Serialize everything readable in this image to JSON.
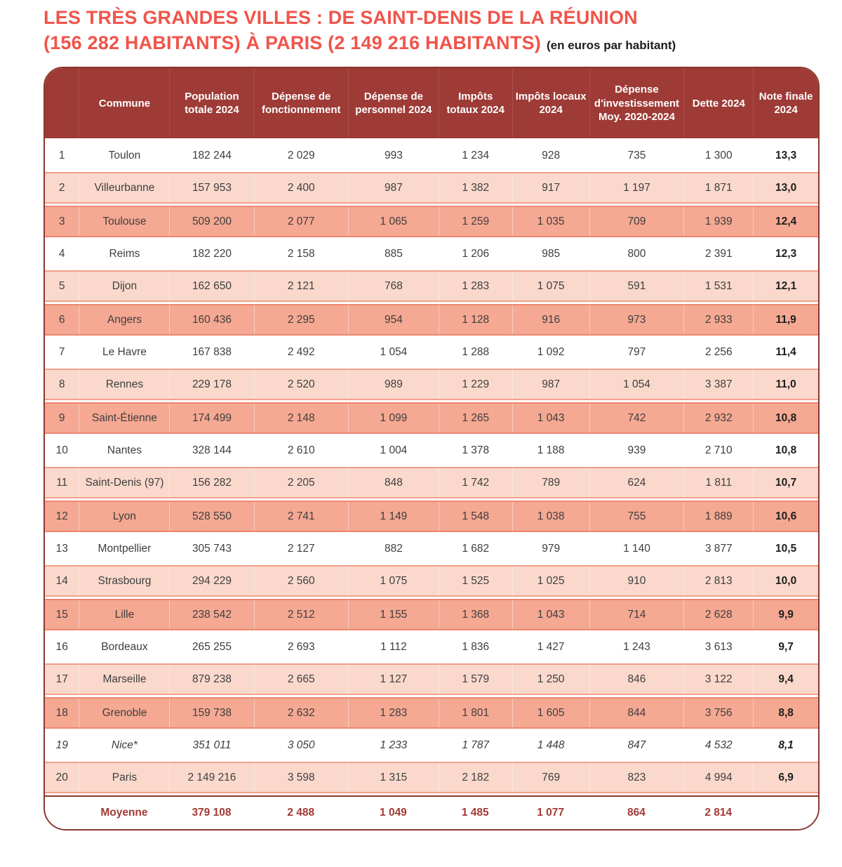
{
  "title": {
    "line1": "LES TRÈS GRANDES VILLES : DE SAINT-DENIS DE LA RÉUNION",
    "line2": "(156 282 HABITANTS) À PARIS (2 149 216 HABITANTS)",
    "suffix": "(en euros par habitant)"
  },
  "colors": {
    "title_red": "#f0544a",
    "header_background": "#9e3b36",
    "header_text": "#ffffff",
    "outer_border": "#8a3730",
    "row_light_background": "#fad9cc",
    "row_light_border": "#f2a18c",
    "row_dark_background": "#f5a892",
    "row_dark_border": "#ee8770",
    "body_text": "#3e3e3e",
    "average_text": "#a23a34"
  },
  "chart_data": {
    "type": "table",
    "title": "LES TRÈS GRANDES VILLES : DE SAINT-DENIS DE LA RÉUNION (156 282 HABITANTS) À PARIS (2 149 216 HABITANTS) (en euros par habitant)",
    "columns": [
      "",
      "Commune",
      "Population totale 2024",
      "Dépense de fonctionnement",
      "Dépense de personnel 2024",
      "Impôts totaux 2024",
      "Impôts locaux 2024",
      "Dépense d'investissement Moy. 2020-2024",
      "Dette 2024",
      "Note finale 2024"
    ],
    "rows": [
      {
        "rank": "1",
        "commune": "Toulon",
        "values": [
          "182 244",
          "2 029",
          "993",
          "1 234",
          "928",
          "735",
          "1 300"
        ],
        "note": "13,3",
        "style": "white",
        "italic": false
      },
      {
        "rank": "2",
        "commune": "Villeurbanne",
        "values": [
          "157 953",
          "2 400",
          "987",
          "1 382",
          "917",
          "1 197",
          "1 871"
        ],
        "note": "13,0",
        "style": "light",
        "italic": false
      },
      {
        "rank": "3",
        "commune": "Toulouse",
        "values": [
          "509 200",
          "2 077",
          "1 065",
          "1 259",
          "1 035",
          "709",
          "1 939"
        ],
        "note": "12,4",
        "style": "dark",
        "italic": false
      },
      {
        "rank": "4",
        "commune": "Reims",
        "values": [
          "182 220",
          "2 158",
          "885",
          "1 206",
          "985",
          "800",
          "2 391"
        ],
        "note": "12,3",
        "style": "white",
        "italic": false
      },
      {
        "rank": "5",
        "commune": "Dijon",
        "values": [
          "162 650",
          "2 121",
          "768",
          "1 283",
          "1 075",
          "591",
          "1 531"
        ],
        "note": "12,1",
        "style": "light",
        "italic": false
      },
      {
        "rank": "6",
        "commune": "Angers",
        "values": [
          "160 436",
          "2 295",
          "954",
          "1 128",
          "916",
          "973",
          "2 933"
        ],
        "note": "11,9",
        "style": "dark",
        "italic": false
      },
      {
        "rank": "7",
        "commune": "Le Havre",
        "values": [
          "167 838",
          "2 492",
          "1 054",
          "1 288",
          "1 092",
          "797",
          "2 256"
        ],
        "note": "11,4",
        "style": "white",
        "italic": false
      },
      {
        "rank": "8",
        "commune": "Rennes",
        "values": [
          "229 178",
          "2 520",
          "989",
          "1 229",
          "987",
          "1 054",
          "3 387"
        ],
        "note": "11,0",
        "style": "light",
        "italic": false
      },
      {
        "rank": "9",
        "commune": "Saint-Étienne",
        "values": [
          "174 499",
          "2 148",
          "1 099",
          "1 265",
          "1 043",
          "742",
          "2 932"
        ],
        "note": "10,8",
        "style": "dark",
        "italic": false
      },
      {
        "rank": "10",
        "commune": "Nantes",
        "values": [
          "328 144",
          "2 610",
          "1 004",
          "1 378",
          "1 188",
          "939",
          "2 710"
        ],
        "note": "10,8",
        "style": "white",
        "italic": false
      },
      {
        "rank": "11",
        "commune": "Saint-Denis (97)",
        "values": [
          "156 282",
          "2 205",
          "848",
          "1 742",
          "789",
          "624",
          "1 811"
        ],
        "note": "10,7",
        "style": "light",
        "italic": false
      },
      {
        "rank": "12",
        "commune": "Lyon",
        "values": [
          "528 550",
          "2 741",
          "1 149",
          "1 548",
          "1 038",
          "755",
          "1 889"
        ],
        "note": "10,6",
        "style": "dark",
        "italic": false
      },
      {
        "rank": "13",
        "commune": "Montpellier",
        "values": [
          "305 743",
          "2 127",
          "882",
          "1 682",
          "979",
          "1 140",
          "3 877"
        ],
        "note": "10,5",
        "style": "white",
        "italic": false
      },
      {
        "rank": "14",
        "commune": "Strasbourg",
        "values": [
          "294 229",
          "2 560",
          "1 075",
          "1 525",
          "1 025",
          "910",
          "2 813"
        ],
        "note": "10,0",
        "style": "light",
        "italic": false
      },
      {
        "rank": "15",
        "commune": "Lille",
        "values": [
          "238 542",
          "2 512",
          "1 155",
          "1 368",
          "1 043",
          "714",
          "2 628"
        ],
        "note": "9,9",
        "style": "dark",
        "italic": false
      },
      {
        "rank": "16",
        "commune": "Bordeaux",
        "values": [
          "265 255",
          "2 693",
          "1 112",
          "1 836",
          "1 427",
          "1 243",
          "3 613"
        ],
        "note": "9,7",
        "style": "white",
        "italic": false
      },
      {
        "rank": "17",
        "commune": "Marseille",
        "values": [
          "879 238",
          "2 665",
          "1 127",
          "1 579",
          "1 250",
          "846",
          "3 122"
        ],
        "note": "9,4",
        "style": "light",
        "italic": false
      },
      {
        "rank": "18",
        "commune": "Grenoble",
        "values": [
          "159 738",
          "2 632",
          "1 283",
          "1 801",
          "1 605",
          "844",
          "3 756"
        ],
        "note": "8,8",
        "style": "dark",
        "italic": false
      },
      {
        "rank": "19",
        "commune": "Nice*",
        "values": [
          "351 011",
          "3 050",
          "1 233",
          "1 787",
          "1 448",
          "847",
          "4 532"
        ],
        "note": "8,1",
        "style": "white",
        "italic": true
      },
      {
        "rank": "20",
        "commune": "Paris",
        "values": [
          "2 149 216",
          "3 598",
          "1 315",
          "2 182",
          "769",
          "823",
          "4 994"
        ],
        "note": "6,9",
        "style": "light",
        "italic": false
      }
    ],
    "footer": {
      "rank": "",
      "label": "Moyenne",
      "values": [
        "379 108",
        "2 488",
        "1 049",
        "1 485",
        "1 077",
        "864",
        "2 814"
      ],
      "note": ""
    }
  }
}
